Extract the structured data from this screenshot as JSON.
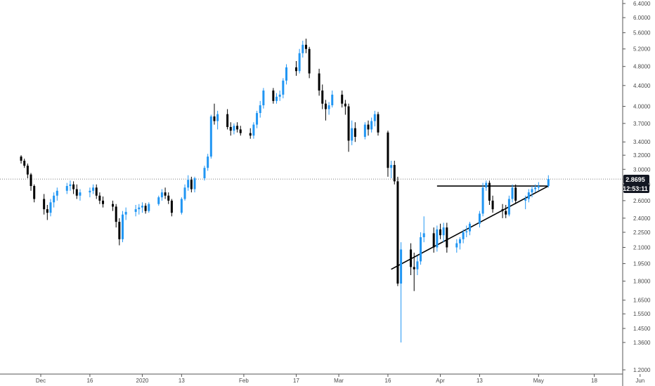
{
  "colors": {
    "up": "#2196F3",
    "down": "#000000",
    "axis_text": "#4a4a4a",
    "axis_line": "#555555",
    "price_line": "#555555",
    "pattern_line": "#000000",
    "label_bg": "#131722",
    "label_text": "#ffffff"
  },
  "price_label": {
    "price": "2.8695",
    "countdown": "12:53:11"
  },
  "chart_data": {
    "type": "candlestick",
    "scale": "log",
    "ylim": [
      1.2,
      6.4
    ],
    "y_ticks": [
      "6.4000",
      "6.0000",
      "5.6000",
      "5.2000",
      "4.8000",
      "4.4000",
      "4.0000",
      "3.7000",
      "3.4000",
      "3.2000",
      "3.0000",
      "2.8000",
      "2.6000",
      "2.4000",
      "2.2500",
      "2.1000",
      "1.9500",
      "1.8000",
      "1.6500",
      "1.5500",
      "1.4500",
      "1.3600",
      "1.2000"
    ],
    "x_ticks": [
      {
        "label": "Dec",
        "day": 0
      },
      {
        "label": "16",
        "day": 15
      },
      {
        "label": "2020",
        "day": 31
      },
      {
        "label": "13",
        "day": 43
      },
      {
        "label": "Feb",
        "day": 62
      },
      {
        "label": "17",
        "day": 78
      },
      {
        "label": "Mar",
        "day": 91
      },
      {
        "label": "16",
        "day": 106
      },
      {
        "label": "Apr",
        "day": 122
      },
      {
        "label": "13",
        "day": 134
      },
      {
        "label": "May",
        "day": 152
      },
      {
        "label": "18",
        "day": 169
      },
      {
        "label": "Jun",
        "day": 183
      }
    ],
    "current_price": 2.8695,
    "start_day": -6,
    "candles": [
      [
        3.18,
        3.2,
        3.08,
        3.12
      ],
      [
        3.12,
        3.15,
        3.02,
        3.05
      ],
      [
        3.05,
        3.08,
        2.88,
        2.93
      ],
      [
        2.93,
        2.95,
        2.72,
        2.78
      ],
      [
        2.78,
        2.8,
        2.58,
        2.62
      ],
      [
        2.62,
        2.68,
        2.44,
        2.5
      ],
      [
        2.5,
        2.55,
        2.38,
        2.46
      ],
      [
        2.46,
        2.62,
        2.42,
        2.58
      ],
      [
        2.58,
        2.7,
        2.52,
        2.66
      ],
      [
        2.66,
        2.76,
        2.6,
        2.72
      ],
      [
        2.72,
        2.82,
        2.68,
        2.78
      ],
      [
        2.78,
        2.85,
        2.72,
        2.8
      ],
      [
        2.8,
        2.84,
        2.68,
        2.74
      ],
      [
        2.74,
        2.8,
        2.62,
        2.66
      ],
      [
        2.66,
        2.74,
        2.6,
        2.7
      ],
      [
        2.7,
        2.76,
        2.64,
        2.72
      ],
      [
        2.72,
        2.8,
        2.68,
        2.76
      ],
      [
        2.76,
        2.8,
        2.62,
        2.66
      ],
      [
        2.66,
        2.7,
        2.56,
        2.6
      ],
      [
        2.6,
        2.65,
        2.52,
        2.56
      ],
      [
        2.56,
        2.6,
        2.48,
        2.53
      ],
      [
        2.53,
        2.56,
        2.3,
        2.36
      ],
      [
        2.36,
        2.4,
        2.12,
        2.18
      ],
      [
        2.18,
        2.48,
        2.15,
        2.44
      ],
      [
        2.44,
        2.52,
        2.38,
        2.47
      ],
      [
        2.47,
        2.55,
        2.42,
        2.5
      ],
      [
        2.5,
        2.56,
        2.44,
        2.52
      ],
      [
        2.52,
        2.58,
        2.46,
        2.54
      ],
      [
        2.54,
        2.57,
        2.45,
        2.48
      ],
      [
        2.48,
        2.58,
        2.46,
        2.56
      ],
      [
        2.56,
        2.66,
        2.54,
        2.64
      ],
      [
        2.64,
        2.74,
        2.6,
        2.7
      ],
      [
        2.7,
        2.76,
        2.62,
        2.66
      ],
      [
        2.66,
        2.7,
        2.56,
        2.6
      ],
      [
        2.6,
        2.62,
        2.42,
        2.46
      ],
      [
        2.46,
        2.64,
        2.44,
        2.62
      ],
      [
        2.62,
        2.8,
        2.6,
        2.76
      ],
      [
        2.76,
        2.92,
        2.72,
        2.86
      ],
      [
        2.86,
        2.9,
        2.7,
        2.74
      ],
      [
        2.74,
        2.9,
        2.7,
        2.88
      ],
      [
        2.88,
        3.05,
        2.85,
        3.02
      ],
      [
        3.02,
        3.22,
        2.98,
        3.18
      ],
      [
        3.18,
        3.85,
        3.15,
        3.82
      ],
      [
        3.82,
        4.05,
        3.68,
        3.74
      ],
      [
        3.74,
        3.92,
        3.6,
        3.86
      ],
      [
        3.86,
        3.95,
        3.6,
        3.64
      ],
      [
        3.64,
        3.72,
        3.5,
        3.58
      ],
      [
        3.58,
        3.7,
        3.52,
        3.66
      ],
      [
        3.66,
        3.72,
        3.55,
        3.6
      ],
      [
        3.6,
        3.66,
        3.5,
        3.54
      ],
      [
        3.54,
        3.62,
        3.45,
        3.5
      ],
      [
        3.5,
        3.72,
        3.45,
        3.68
      ],
      [
        3.68,
        3.92,
        3.62,
        3.88
      ],
      [
        3.88,
        4.1,
        3.8,
        4.02
      ],
      [
        4.02,
        4.35,
        3.96,
        4.3
      ],
      [
        4.3,
        4.35,
        4.05,
        4.1
      ],
      [
        4.1,
        4.25,
        4.05,
        4.18
      ],
      [
        4.18,
        4.3,
        4.1,
        4.22
      ],
      [
        4.22,
        4.55,
        4.15,
        4.5
      ],
      [
        4.5,
        4.85,
        4.42,
        4.78
      ],
      [
        4.78,
        4.92,
        4.6,
        4.7
      ],
      [
        4.7,
        5.2,
        4.65,
        5.1
      ],
      [
        5.1,
        5.4,
        5.0,
        5.3
      ],
      [
        5.3,
        5.45,
        5.1,
        5.2
      ],
      [
        5.2,
        5.25,
        4.55,
        4.65
      ],
      [
        4.65,
        4.75,
        4.2,
        4.3
      ],
      [
        4.3,
        4.42,
        3.95,
        4.05
      ],
      [
        4.05,
        4.12,
        3.75,
        3.95
      ],
      [
        3.95,
        4.08,
        3.85,
        4.02
      ],
      [
        4.02,
        4.3,
        3.98,
        4.22
      ],
      [
        4.22,
        4.3,
        3.98,
        4.05
      ],
      [
        4.05,
        4.12,
        3.85,
        4.0
      ],
      [
        4.0,
        4.05,
        3.25,
        3.42
      ],
      [
        3.42,
        3.75,
        3.35,
        3.62
      ],
      [
        3.62,
        3.72,
        3.4,
        3.48
      ],
      [
        3.48,
        3.72,
        3.44,
        3.68
      ],
      [
        3.68,
        3.75,
        3.5,
        3.6
      ],
      [
        3.6,
        3.8,
        3.55,
        3.74
      ],
      [
        3.74,
        3.92,
        3.65,
        3.86
      ],
      [
        3.86,
        3.9,
        3.5,
        3.55
      ],
      [
        3.55,
        3.58,
        2.9,
        3.02
      ],
      [
        3.02,
        3.12,
        2.88,
        3.06
      ],
      [
        3.06,
        3.12,
        2.8,
        2.84
      ],
      [
        2.84,
        2.9,
        1.76,
        1.78
      ],
      [
        1.78,
        2.15,
        1.36,
        2.08
      ],
      [
        2.08,
        2.14,
        1.85,
        1.92
      ],
      [
        1.92,
        2.05,
        1.72,
        1.9
      ],
      [
        1.9,
        2.02,
        1.85,
        1.97
      ],
      [
        1.97,
        2.25,
        1.94,
        2.2
      ],
      [
        2.2,
        2.42,
        2.15,
        2.24
      ],
      [
        2.24,
        2.3,
        2.05,
        2.1
      ],
      [
        2.1,
        2.32,
        2.06,
        2.28
      ],
      [
        2.28,
        2.34,
        2.18,
        2.22
      ],
      [
        2.22,
        2.35,
        2.15,
        2.3
      ],
      [
        2.3,
        2.35,
        2.05,
        2.1
      ],
      [
        2.1,
        2.18,
        2.05,
        2.14
      ],
      [
        2.14,
        2.2,
        2.08,
        2.18
      ],
      [
        2.18,
        2.28,
        2.14,
        2.25
      ],
      [
        2.25,
        2.32,
        2.2,
        2.26
      ],
      [
        2.26,
        2.36,
        2.22,
        2.34
      ],
      [
        2.34,
        2.48,
        2.3,
        2.45
      ],
      [
        2.45,
        2.82,
        2.42,
        2.76
      ],
      [
        2.76,
        2.85,
        2.72,
        2.82
      ],
      [
        2.82,
        2.85,
        2.55,
        2.6
      ],
      [
        2.6,
        2.66,
        2.46,
        2.5
      ],
      [
        2.5,
        2.56,
        2.4,
        2.48
      ],
      [
        2.48,
        2.55,
        2.4,
        2.44
      ],
      [
        2.44,
        2.66,
        2.42,
        2.62
      ],
      [
        2.62,
        2.8,
        2.58,
        2.76
      ],
      [
        2.76,
        2.8,
        2.56,
        2.6
      ],
      [
        2.6,
        2.66,
        2.5,
        2.62
      ],
      [
        2.62,
        2.74,
        2.58,
        2.7
      ],
      [
        2.7,
        2.78,
        2.64,
        2.74
      ],
      [
        2.74,
        2.8,
        2.7,
        2.76
      ],
      [
        2.76,
        2.83,
        2.72,
        2.78
      ],
      [
        2.78,
        2.92,
        2.76,
        2.87
      ]
    ]
  },
  "pattern": {
    "resistance": {
      "start_day": 121,
      "end_day": 155,
      "price": 2.78
    },
    "support": {
      "start_day": 107,
      "start_price": 1.9,
      "end_day": 155,
      "end_price": 2.78
    }
  }
}
